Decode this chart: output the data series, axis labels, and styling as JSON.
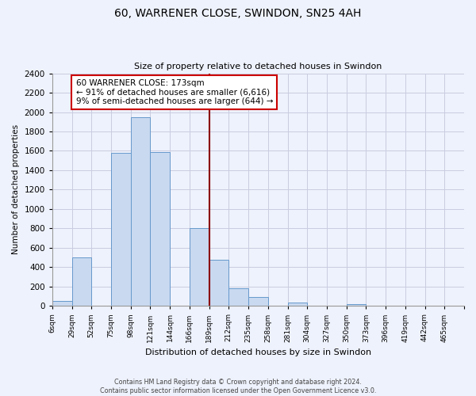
{
  "title": "60, WARRENER CLOSE, SWINDON, SN25 4AH",
  "subtitle": "Size of property relative to detached houses in Swindon",
  "xlabel": "Distribution of detached houses by size in Swindon",
  "ylabel": "Number of detached properties",
  "bin_labels": [
    "6sqm",
    "29sqm",
    "52sqm",
    "75sqm",
    "98sqm",
    "121sqm",
    "144sqm",
    "166sqm",
    "189sqm",
    "212sqm",
    "235sqm",
    "258sqm",
    "281sqm",
    "304sqm",
    "327sqm",
    "350sqm",
    "373sqm",
    "396sqm",
    "419sqm",
    "442sqm",
    "465sqm"
  ],
  "bar_heights": [
    50,
    500,
    0,
    1580,
    1950,
    1590,
    0,
    800,
    480,
    185,
    90,
    0,
    35,
    0,
    0,
    20,
    0,
    0,
    0,
    0,
    0
  ],
  "bar_color": "#c9d9f0",
  "bar_edge_color": "#6699cc",
  "vline_color": "#8b0000",
  "annotation_title": "60 WARRENER CLOSE: 173sqm",
  "annotation_line1": "← 91% of detached houses are smaller (6,616)",
  "annotation_line2": "9% of semi-detached houses are larger (644) →",
  "annotation_box_edge": "#cc0000",
  "ylim": [
    0,
    2400
  ],
  "yticks": [
    0,
    200,
    400,
    600,
    800,
    1000,
    1200,
    1400,
    1600,
    1800,
    2000,
    2200,
    2400
  ],
  "footer_line1": "Contains HM Land Registry data © Crown copyright and database right 2024.",
  "footer_line2": "Contains public sector information licensed under the Open Government Licence v3.0.",
  "bg_color": "#eef2fc"
}
